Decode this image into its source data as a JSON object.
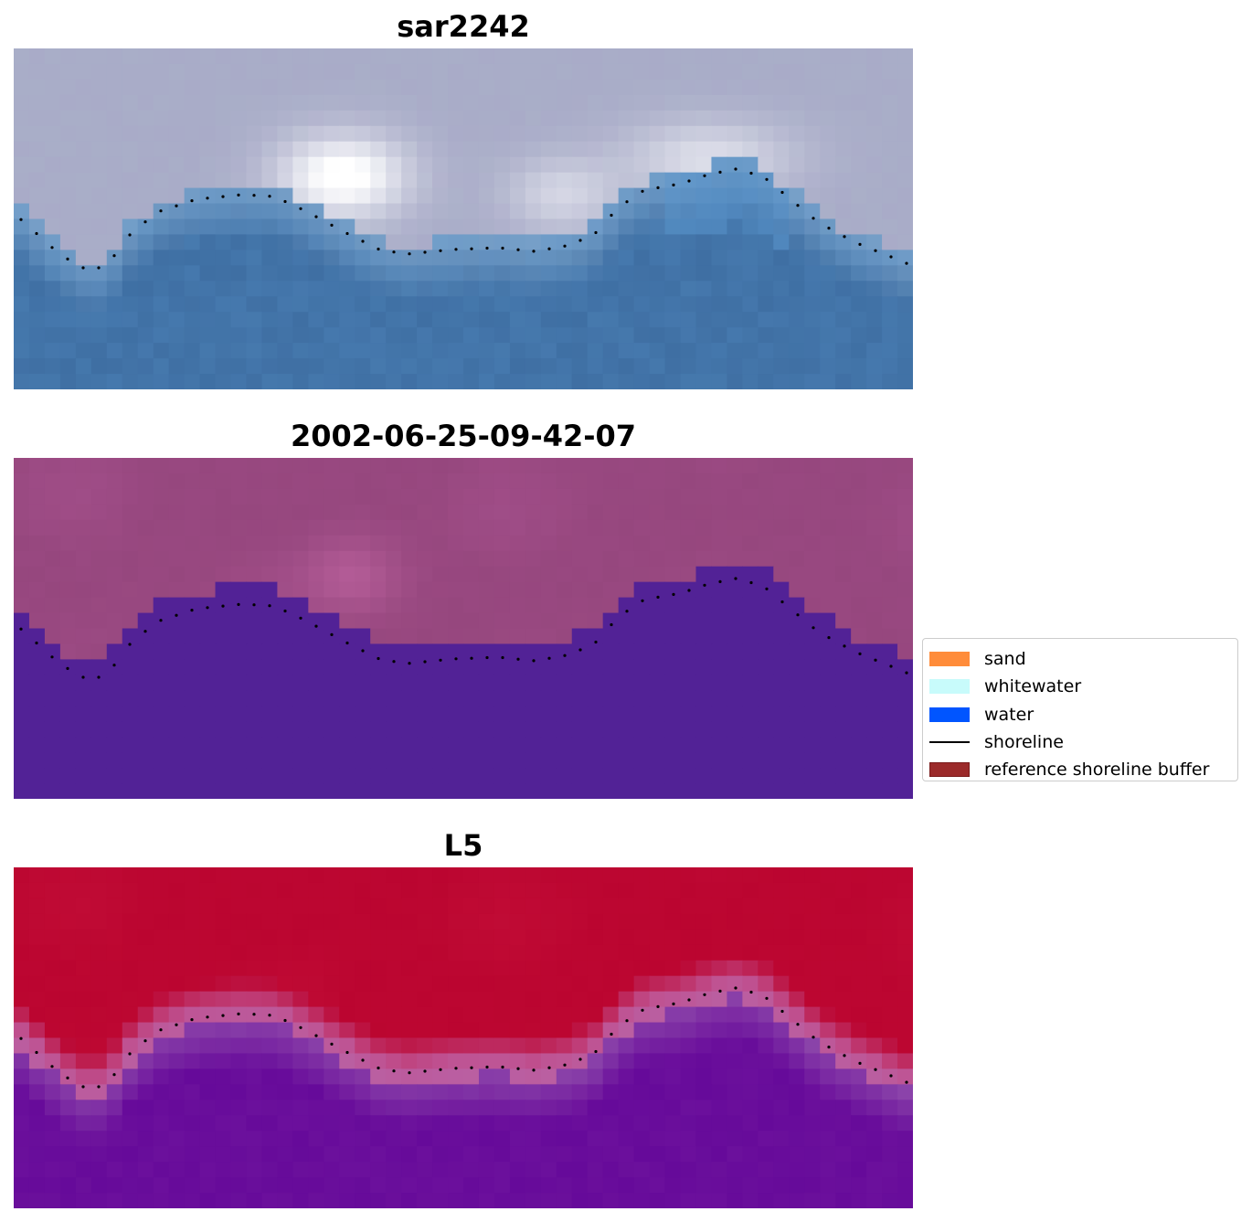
{
  "panels": [
    {
      "title": "sar2242",
      "style": "sar"
    },
    {
      "title": "2002-06-25-09-42-07",
      "style": "classified"
    },
    {
      "title": "L5",
      "style": "probability"
    }
  ],
  "legend": {
    "items": [
      {
        "label": "sand",
        "kind": "patch",
        "color": "#ff8c3a"
      },
      {
        "label": "whitewater",
        "kind": "patch",
        "color": "#c8fbfb"
      },
      {
        "label": "water",
        "kind": "patch",
        "color": "#0055ff"
      },
      {
        "label": "shoreline",
        "kind": "line",
        "color": "#000000"
      },
      {
        "label": "reference shoreline buffer",
        "kind": "patch",
        "color": "#9b2a2a",
        "edge": "#7a1a1a"
      }
    ]
  },
  "colors": {
    "sar_land": "#a9aec8",
    "sar_bright": "#ffffff",
    "sar_water": "#3f6fa3",
    "class_land": "#96477e",
    "class_water": "#522296",
    "prob_land": "#bb0530",
    "prob_edge": "#c0508f",
    "prob_water": "#660a9a",
    "shoreline_dots": "#000000"
  }
}
